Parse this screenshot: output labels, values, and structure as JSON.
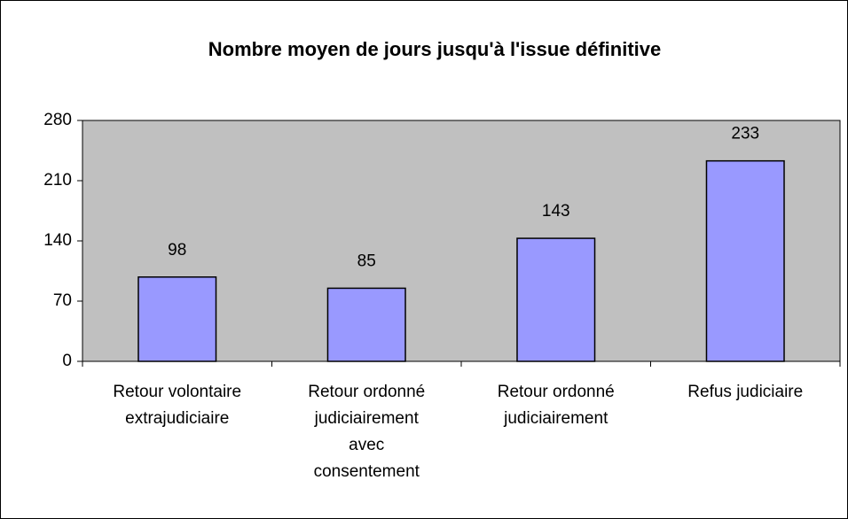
{
  "chart_data": {
    "type": "bar",
    "title": "Nombre moyen de jours jusqu'à l'issue définitive",
    "categories": [
      "Retour volontaire extrajudiciaire",
      "Retour ordonné judiciairement avec consentement",
      "Retour ordonné judiciairement",
      "Refus judiciaire"
    ],
    "values": [
      98,
      85,
      143,
      233
    ],
    "color": "#9999ff",
    "plot_background": "#c0c0c0",
    "ylim": [
      0,
      280
    ],
    "yticks": [
      0,
      70,
      140,
      210,
      280
    ],
    "grid": false
  }
}
